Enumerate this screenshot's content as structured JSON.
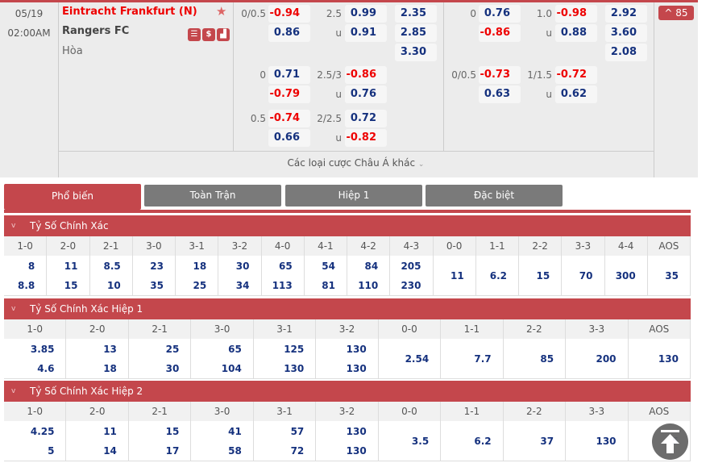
{
  "match": {
    "date": "05/19",
    "time": "02:00AM",
    "home": "Eintracht Frankfurt (N)",
    "away": "Rangers FC",
    "draw": "Hòa",
    "more_count": "85",
    "more_bets": "Các loại cược Châu Á khác"
  },
  "ft": {
    "rows": [
      {
        "hcap": "0/0.5",
        "h1": "-0.94",
        "h2": "0.86",
        "ou": "2.5",
        "o1": "0.99",
        "o2": "0.91",
        "u": "u",
        "x1": "2.35",
        "x2": "2.85",
        "x3": "3.30"
      },
      {
        "hcap": "0",
        "h1": "0.71",
        "h2": "-0.79",
        "ou": "2.5/3",
        "o1": "-0.86",
        "o2": "0.76",
        "u": "u"
      },
      {
        "hcap": "0.5",
        "h1": "-0.74",
        "h2": "0.66",
        "ou": "2/2.5",
        "o1": "0.72",
        "o2": "-0.82",
        "u": "u"
      }
    ]
  },
  "h1": {
    "rows": [
      {
        "hcap": "0",
        "h1": "0.76",
        "h2": "-0.86",
        "ou": "1.0",
        "o1": "-0.98",
        "o2": "0.88",
        "u": "u",
        "x1": "2.92",
        "x2": "3.60",
        "x3": "2.08"
      },
      {
        "hcap": "0/0.5",
        "h1": "-0.73",
        "h2": "0.63",
        "ou": "1/1.5",
        "o1": "-0.72",
        "o2": "0.62",
        "u": "u"
      }
    ]
  },
  "tabs": [
    "Phổ biến",
    "Toàn Trận",
    "Hiệp 1",
    "Đặc biệt"
  ],
  "sections": [
    {
      "title": "Tỷ Số Chính Xác",
      "cols": [
        "1-0",
        "2-0",
        "2-1",
        "3-0",
        "3-1",
        "3-2",
        "4-0",
        "4-1",
        "4-2",
        "4-3",
        "0-0",
        "1-1",
        "2-2",
        "3-3",
        "4-4",
        "AOS"
      ],
      "vals": [
        [
          "8",
          "8.8"
        ],
        [
          "11",
          "15"
        ],
        [
          "8.5",
          "10"
        ],
        [
          "23",
          "35"
        ],
        [
          "18",
          "25"
        ],
        [
          "30",
          "34"
        ],
        [
          "65",
          "113"
        ],
        [
          "54",
          "81"
        ],
        [
          "84",
          "110"
        ],
        [
          "205",
          "230"
        ],
        [
          "11"
        ],
        [
          "6.2"
        ],
        [
          "15"
        ],
        [
          "70"
        ],
        [
          "300"
        ],
        [
          "35"
        ]
      ]
    },
    {
      "title": "Tỷ Số Chính Xác Hiệp 1",
      "cols": [
        "1-0",
        "2-0",
        "2-1",
        "3-0",
        "3-1",
        "3-2",
        "0-0",
        "1-1",
        "2-2",
        "3-3",
        "AOS"
      ],
      "vals": [
        [
          "3.85",
          "4.6"
        ],
        [
          "13",
          "18"
        ],
        [
          "25",
          "30"
        ],
        [
          "65",
          "104"
        ],
        [
          "125",
          "130"
        ],
        [
          "130",
          "130"
        ],
        [
          "2.54"
        ],
        [
          "7.7"
        ],
        [
          "85"
        ],
        [
          "200"
        ],
        [
          "130"
        ]
      ]
    },
    {
      "title": "Tỷ Số Chính Xác Hiệp 2",
      "cols": [
        "1-0",
        "2-0",
        "2-1",
        "3-0",
        "3-1",
        "3-2",
        "0-0",
        "1-1",
        "2-2",
        "3-3",
        "AOS"
      ],
      "vals": [
        [
          "4.25",
          "5"
        ],
        [
          "11",
          "14"
        ],
        [
          "15",
          "17"
        ],
        [
          "41",
          "58"
        ],
        [
          "57",
          "72"
        ],
        [
          "130",
          "130"
        ],
        [
          "3.5"
        ],
        [
          "6.2"
        ],
        [
          "37"
        ],
        [
          "130"
        ],
        [
          "5"
        ]
      ]
    }
  ],
  "colors": {
    "accent": "#c4474c",
    "positive": "#15317e",
    "negative": "#e00000"
  }
}
